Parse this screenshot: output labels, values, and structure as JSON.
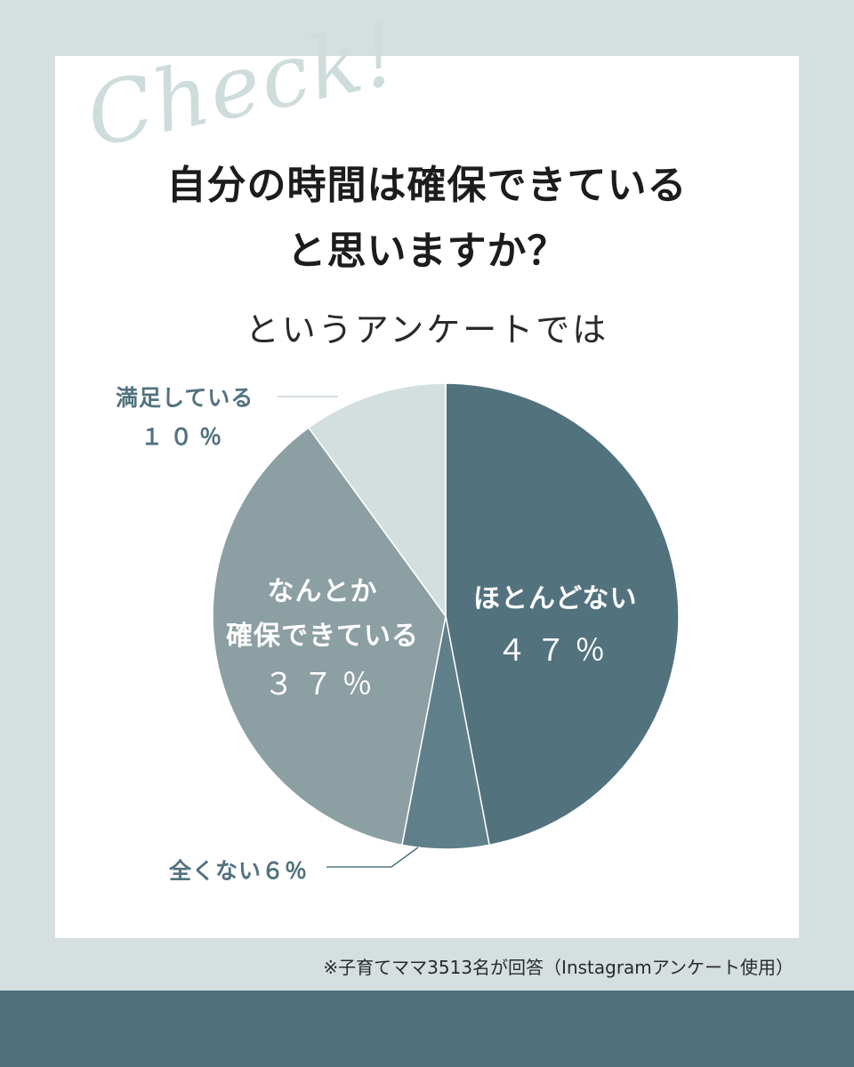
{
  "decoration": {
    "script_text": "Check!"
  },
  "header": {
    "title_line1": "自分の時間は確保できている",
    "title_line2": "と思いますか？",
    "subtitle": "というアンケートでは"
  },
  "labels": {
    "hotondonai_name": "ほとんどない",
    "hotondonai_pct": "４７％",
    "nantoka_name_line1": "なんとか",
    "nantoka_name_line2": "確保できている",
    "nantoka_pct": "３７％",
    "manzoku_name": "満足している",
    "manzoku_pct": "１０％",
    "mattaku": "全くない６％"
  },
  "footnote": "※子育てママ3513名が回答（Instagramアンケート使用）",
  "chart_data": {
    "type": "pie",
    "title": "自分の時間は確保できていると思いますか？",
    "slices": [
      {
        "label": "ほとんどない",
        "value": 47,
        "color": "#52727e"
      },
      {
        "label": "全くない",
        "value": 6,
        "color": "#5f808a"
      },
      {
        "label": "なんとか確保できている",
        "value": 37,
        "color": "#8c9fa2"
      },
      {
        "label": "満足している",
        "value": 10,
        "color": "#d3dfdf"
      }
    ],
    "start": "12 o'clock",
    "direction": "clockwise",
    "legend": "none"
  }
}
